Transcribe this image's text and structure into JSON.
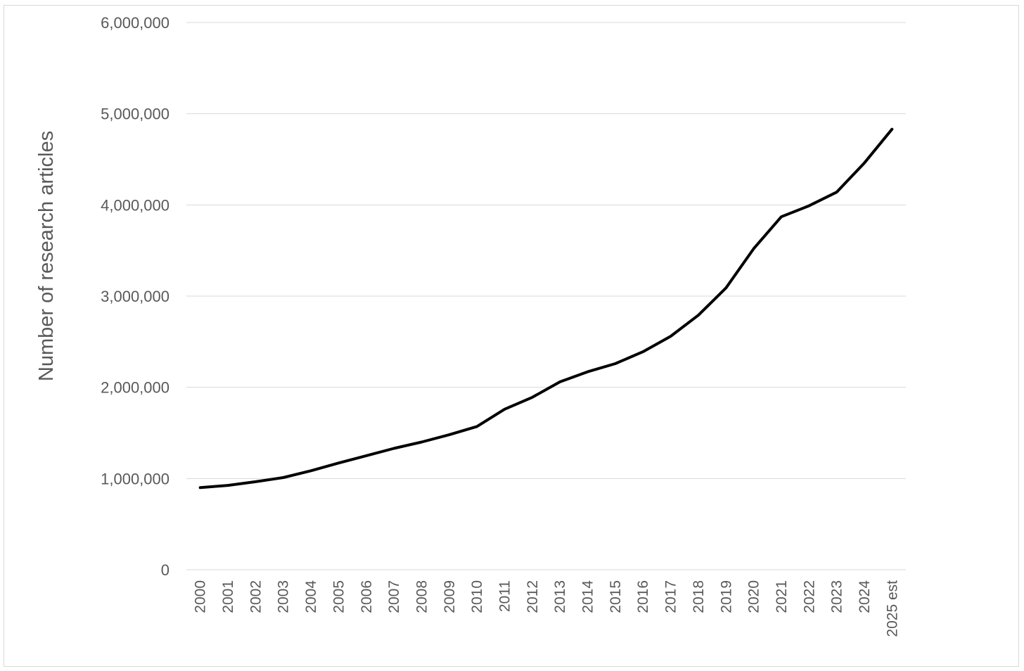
{
  "chart_data": {
    "type": "line",
    "title": "",
    "xlabel": "",
    "ylabel": "Number of research articles",
    "ylim": [
      0,
      6000000
    ],
    "yticks": [
      0,
      1000000,
      2000000,
      3000000,
      4000000,
      5000000,
      6000000
    ],
    "ytick_labels": [
      "0",
      "1,000,000",
      "2,000,000",
      "3,000,000",
      "4,000,000",
      "5,000,000",
      "6,000,000"
    ],
    "grid": true,
    "legend": "none",
    "categories": [
      "2000",
      "2001",
      "2002",
      "2003",
      "2004",
      "2005",
      "2006",
      "2007",
      "2008",
      "2009",
      "2010",
      "2011",
      "2012",
      "2013",
      "2014",
      "2015",
      "2016",
      "2017",
      "2018",
      "2019",
      "2020",
      "2021",
      "2022",
      "2023",
      "2024",
      "2025 est"
    ],
    "series": [
      {
        "values": [
          900000,
          925000,
          965000,
          1010000,
          1085000,
          1170000,
          1250000,
          1330000,
          1400000,
          1480000,
          1570000,
          1760000,
          1890000,
          2060000,
          2170000,
          2260000,
          2390000,
          2560000,
          2790000,
          3090000,
          3520000,
          3870000,
          3990000,
          4140000,
          4460000,
          4830000
        ],
        "color": "#000000"
      }
    ],
    "colors": {
      "line": "#000000",
      "grid": "#d9d9d9",
      "text": "#595959",
      "border": "#d9d9d9"
    }
  }
}
